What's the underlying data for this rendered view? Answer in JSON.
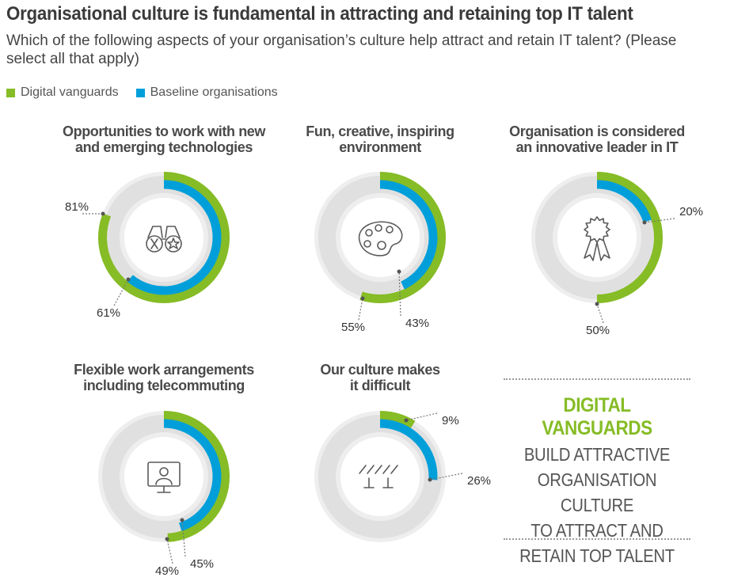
{
  "header": {
    "title": "Organisational culture is fundamental in attracting and retaining top IT talent",
    "subtitle": "Which of the following aspects of your organisation’s culture help attract and retain IT talent? (Please select all that apply)"
  },
  "legend": {
    "digital_label": "Digital vanguards",
    "baseline_label": "Baseline organisations"
  },
  "colors": {
    "digital": "#86bc25",
    "baseline": "#009fda",
    "track_outer": "#eeeeee",
    "track_inner": "#e0e0e0",
    "icon": "#5a5a5a"
  },
  "chart_data": [
    {
      "type": "donut",
      "title_lines": [
        "Opportunities to work with new",
        "and emerging technologies"
      ],
      "icon": "binoculars-icon",
      "series": [
        {
          "name": "Digital vanguards",
          "value": 81,
          "label": "81%"
        },
        {
          "name": "Baseline organisations",
          "value": 61,
          "label": "61%"
        }
      ]
    },
    {
      "type": "donut",
      "title_lines": [
        "Fun, creative, inspiring",
        "environment"
      ],
      "icon": "palette-icon",
      "series": [
        {
          "name": "Digital vanguards",
          "value": 55,
          "label": "55%"
        },
        {
          "name": "Baseline organisations",
          "value": 43,
          "label": "43%"
        }
      ]
    },
    {
      "type": "donut",
      "title_lines": [
        "Organisation is considered",
        "an innovative leader in IT"
      ],
      "icon": "award-ribbon-icon",
      "series": [
        {
          "name": "Digital vanguards",
          "value": 50,
          "label": "50%"
        },
        {
          "name": "Baseline organisations",
          "value": 20,
          "label": "20%"
        }
      ]
    },
    {
      "type": "donut",
      "title_lines": [
        "Flexible work arrangements",
        "including telecommuting"
      ],
      "icon": "video-call-icon",
      "series": [
        {
          "name": "Digital vanguards",
          "value": 49,
          "label": "49%"
        },
        {
          "name": "Baseline organisations",
          "value": 45,
          "label": "45%"
        }
      ]
    },
    {
      "type": "donut",
      "title_lines": [
        "Our culture makes",
        "it difficult"
      ],
      "icon": "barrier-icon",
      "series": [
        {
          "name": "Digital vanguards",
          "value": 9,
          "label": "9%"
        },
        {
          "name": "Baseline organisations",
          "value": 26,
          "label": "26%"
        }
      ]
    }
  ],
  "callout": {
    "headline": "DIGITAL VANGUARDS",
    "body_lines": [
      "BUILD ATTRACTIVE",
      "ORGANISATION CULTURE",
      "TO ATTRACT AND",
      "RETAIN TOP TALENT"
    ]
  }
}
